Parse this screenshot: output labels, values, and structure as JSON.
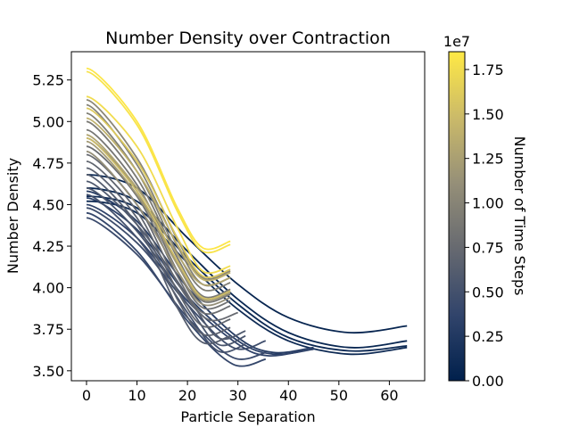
{
  "chart_data": {
    "type": "line",
    "title": "Number Density over Contraction",
    "xlabel": "Particle Separation",
    "ylabel": "Number Density",
    "xlim": [
      -3,
      67
    ],
    "ylim": [
      3.44,
      5.42
    ],
    "xticks": [
      0,
      10,
      20,
      30,
      40,
      50,
      60
    ],
    "yticks": [
      3.5,
      3.75,
      4.0,
      4.25,
      4.5,
      4.75,
      5.0,
      5.25
    ],
    "xtick_labels": [
      "0",
      "10",
      "20",
      "30",
      "40",
      "50",
      "60"
    ],
    "ytick_labels": [
      "3.50",
      "3.75",
      "4.00",
      "4.25",
      "4.50",
      "4.75",
      "5.00",
      "5.25"
    ],
    "grid": false,
    "colormap": "cividis",
    "colormap_stops": [
      "#00204c",
      "#31446b",
      "#666970",
      "#958f78",
      "#cbba69",
      "#ffe945"
    ],
    "colorbar": {
      "label": "Number of Time Steps",
      "range": [
        0,
        18500000
      ],
      "ticks": [
        0,
        2500000,
        5000000,
        7500000,
        10000000,
        12500000,
        15000000,
        17500000
      ],
      "tick_labels": [
        "0.00",
        "0.25",
        "0.50",
        "0.75",
        "1.00",
        "1.25",
        "1.50",
        "1.75"
      ],
      "offset_text": "1e7"
    },
    "series": [
      {
        "time_step": 500000,
        "x_end": 63.5,
        "y_start": 4.68,
        "y_min": 3.73,
        "x_min": 52,
        "y_end": 3.77,
        "values": [
          [
            0,
            4.68
          ],
          [
            10,
            4.6
          ],
          [
            20,
            4.3
          ],
          [
            30,
            4.02
          ],
          [
            40,
            3.82
          ],
          [
            52,
            3.73
          ],
          [
            63.5,
            3.77
          ]
        ]
      },
      {
        "time_step": 700000,
        "x_end": 63.5,
        "y_start": 4.6,
        "y_min": 3.64,
        "x_min": 52,
        "y_end": 3.68,
        "values": [
          [
            0,
            4.6
          ],
          [
            10,
            4.52
          ],
          [
            20,
            4.22
          ],
          [
            30,
            3.93
          ],
          [
            40,
            3.73
          ],
          [
            52,
            3.64
          ],
          [
            63.5,
            3.68
          ]
        ]
      },
      {
        "time_step": 900000,
        "x_end": 63.5,
        "y_start": 4.55,
        "y_min": 3.62,
        "x_min": 52,
        "y_end": 3.65,
        "values": [
          [
            0,
            4.55
          ],
          [
            10,
            4.48
          ],
          [
            20,
            4.18
          ],
          [
            30,
            3.9
          ],
          [
            40,
            3.7
          ],
          [
            52,
            3.62
          ],
          [
            63.5,
            3.65
          ]
        ]
      },
      {
        "time_step": 1100000,
        "x_end": 63.5,
        "y_start": 4.52,
        "y_min": 3.6,
        "x_min": 52,
        "y_end": 3.64,
        "values": [
          [
            0,
            4.52
          ],
          [
            10,
            4.45
          ],
          [
            20,
            4.15
          ],
          [
            30,
            3.87
          ],
          [
            40,
            3.68
          ],
          [
            52,
            3.6
          ],
          [
            63.5,
            3.64
          ]
        ]
      },
      {
        "time_step": 2800000,
        "x_end": 45,
        "y_start": 4.58,
        "y_min": 3.61,
        "x_min": 37,
        "y_end": 3.64,
        "values": [
          [
            0,
            4.58
          ],
          [
            10,
            4.4
          ],
          [
            20,
            4.0
          ],
          [
            30,
            3.7
          ],
          [
            37,
            3.61
          ],
          [
            45,
            3.64
          ]
        ]
      },
      {
        "time_step": 3200000,
        "x_end": 45,
        "y_start": 4.54,
        "y_min": 3.6,
        "x_min": 37,
        "y_end": 3.63,
        "values": [
          [
            0,
            4.54
          ],
          [
            10,
            4.35
          ],
          [
            20,
            3.95
          ],
          [
            30,
            3.68
          ],
          [
            37,
            3.6
          ],
          [
            45,
            3.63
          ]
        ]
      },
      {
        "time_step": 3600000,
        "x_end": 43,
        "y_start": 4.5,
        "y_min": 3.59,
        "x_min": 36,
        "y_end": 3.62,
        "values": [
          [
            0,
            4.5
          ],
          [
            10,
            4.3
          ],
          [
            20,
            3.92
          ],
          [
            30,
            3.66
          ],
          [
            36,
            3.59
          ],
          [
            43,
            3.62
          ]
        ]
      },
      {
        "time_step": 4000000,
        "x_end": 35.5,
        "y_start": 4.45,
        "y_min": 3.54,
        "x_min": 29,
        "y_end": 3.57,
        "values": [
          [
            0,
            4.45
          ],
          [
            10,
            4.22
          ],
          [
            20,
            3.8
          ],
          [
            29,
            3.54
          ],
          [
            35.5,
            3.57
          ]
        ]
      },
      {
        "time_step": 4300000,
        "x_end": 35.5,
        "y_start": 4.42,
        "y_min": 3.58,
        "x_min": 29,
        "y_end": 3.61,
        "values": [
          [
            0,
            4.42
          ],
          [
            10,
            4.2
          ],
          [
            20,
            3.82
          ],
          [
            29,
            3.58
          ],
          [
            35.5,
            3.61
          ]
        ]
      },
      {
        "time_step": 4600000,
        "x_end": 35.5,
        "y_start": 4.48,
        "y_min": 3.64,
        "x_min": 29,
        "y_end": 3.68,
        "values": [
          [
            0,
            4.48
          ],
          [
            10,
            4.27
          ],
          [
            20,
            3.9
          ],
          [
            29,
            3.64
          ],
          [
            35.5,
            3.68
          ]
        ]
      },
      {
        "time_step": 5000000,
        "x_end": 31.5,
        "y_start": 4.56,
        "y_min": 3.62,
        "x_min": 26,
        "y_end": 3.66,
        "values": [
          [
            0,
            4.56
          ],
          [
            10,
            4.3
          ],
          [
            20,
            3.85
          ],
          [
            26,
            3.62
          ],
          [
            31.5,
            3.66
          ]
        ]
      },
      {
        "time_step": 5400000,
        "x_end": 31.5,
        "y_start": 4.6,
        "y_min": 3.66,
        "x_min": 26,
        "y_end": 3.71,
        "values": [
          [
            0,
            4.6
          ],
          [
            10,
            4.34
          ],
          [
            20,
            3.9
          ],
          [
            26,
            3.66
          ],
          [
            31.5,
            3.71
          ]
        ]
      },
      {
        "time_step": 5800000,
        "x_end": 31.5,
        "y_start": 4.64,
        "y_min": 3.7,
        "x_min": 26,
        "y_end": 3.74,
        "values": [
          [
            0,
            4.64
          ],
          [
            10,
            4.38
          ],
          [
            20,
            3.95
          ],
          [
            26,
            3.7
          ],
          [
            31.5,
            3.74
          ]
        ]
      },
      {
        "time_step": 6200000,
        "x_end": 28.5,
        "y_start": 4.68,
        "y_min": 3.67,
        "x_min": 23,
        "y_end": 3.71,
        "values": [
          [
            0,
            4.68
          ],
          [
            10,
            4.38
          ],
          [
            18,
            3.88
          ],
          [
            23,
            3.67
          ],
          [
            28.5,
            3.71
          ]
        ]
      },
      {
        "time_step": 6600000,
        "x_end": 28.5,
        "y_start": 4.72,
        "y_min": 3.72,
        "x_min": 23,
        "y_end": 3.76,
        "values": [
          [
            0,
            4.72
          ],
          [
            10,
            4.42
          ],
          [
            18,
            3.93
          ],
          [
            23,
            3.72
          ],
          [
            28.5,
            3.76
          ]
        ]
      },
      {
        "time_step": 7000000,
        "x_end": 28.5,
        "y_start": 4.76,
        "y_min": 3.77,
        "x_min": 23,
        "y_end": 3.81,
        "values": [
          [
            0,
            4.76
          ],
          [
            10,
            4.46
          ],
          [
            18,
            3.98
          ],
          [
            23,
            3.77
          ],
          [
            28.5,
            3.81
          ]
        ]
      },
      {
        "time_step": 7400000,
        "x_end": 30,
        "y_start": 4.8,
        "y_min": 3.81,
        "x_min": 24,
        "y_end": 3.85,
        "values": [
          [
            0,
            4.8
          ],
          [
            10,
            4.5
          ],
          [
            18,
            4.03
          ],
          [
            24,
            3.81
          ],
          [
            30,
            3.85
          ]
        ]
      },
      {
        "time_step": 7800000,
        "x_end": 28.5,
        "y_start": 4.85,
        "y_min": 3.85,
        "x_min": 23,
        "y_end": 3.89,
        "values": [
          [
            0,
            4.85
          ],
          [
            10,
            4.55
          ],
          [
            18,
            4.07
          ],
          [
            23,
            3.85
          ],
          [
            28.5,
            3.89
          ]
        ]
      },
      {
        "time_step": 8200000,
        "x_end": 28.5,
        "y_start": 4.9,
        "y_min": 3.88,
        "x_min": 23,
        "y_end": 3.92,
        "values": [
          [
            0,
            4.9
          ],
          [
            10,
            4.58
          ],
          [
            18,
            4.1
          ],
          [
            23,
            3.88
          ],
          [
            28.5,
            3.92
          ]
        ]
      },
      {
        "time_step": 8600000,
        "x_end": 28.5,
        "y_start": 4.95,
        "y_min": 3.92,
        "x_min": 23,
        "y_end": 3.96,
        "values": [
          [
            0,
            4.95
          ],
          [
            10,
            4.62
          ],
          [
            18,
            4.14
          ],
          [
            23,
            3.92
          ],
          [
            28.5,
            3.96
          ]
        ]
      },
      {
        "time_step": 9000000,
        "x_end": 28.5,
        "y_start": 5.0,
        "y_min": 3.95,
        "x_min": 23,
        "y_end": 3.99,
        "values": [
          [
            0,
            5.0
          ],
          [
            10,
            4.66
          ],
          [
            18,
            4.18
          ],
          [
            23,
            3.95
          ],
          [
            28.5,
            3.99
          ]
        ]
      },
      {
        "time_step": 9400000,
        "x_end": 28.5,
        "y_start": 5.05,
        "y_min": 3.99,
        "x_min": 23,
        "y_end": 4.03,
        "values": [
          [
            0,
            5.05
          ],
          [
            10,
            4.7
          ],
          [
            18,
            4.21
          ],
          [
            23,
            3.99
          ],
          [
            28.5,
            4.03
          ]
        ]
      },
      {
        "time_step": 9800000,
        "x_end": 28.5,
        "y_start": 5.1,
        "y_min": 4.02,
        "x_min": 23,
        "y_end": 4.06,
        "values": [
          [
            0,
            5.1
          ],
          [
            10,
            4.74
          ],
          [
            18,
            4.25
          ],
          [
            23,
            4.02
          ],
          [
            28.5,
            4.06
          ]
        ]
      },
      {
        "time_step": 10200000,
        "x_end": 28.5,
        "y_start": 5.13,
        "y_min": 4.06,
        "x_min": 23,
        "y_end": 4.1,
        "values": [
          [
            0,
            5.13
          ],
          [
            10,
            4.78
          ],
          [
            18,
            4.29
          ],
          [
            23,
            4.06
          ],
          [
            28.5,
            4.1
          ]
        ]
      },
      {
        "time_step": 11000000,
        "x_end": 28.5,
        "y_start": 4.82,
        "y_min": 3.9,
        "x_min": 23,
        "y_end": 3.94,
        "values": [
          [
            0,
            4.82
          ],
          [
            10,
            4.5
          ],
          [
            18,
            4.1
          ],
          [
            23,
            3.9
          ],
          [
            28.5,
            3.94
          ]
        ]
      },
      {
        "time_step": 12000000,
        "x_end": 28.5,
        "y_start": 4.88,
        "y_min": 3.93,
        "x_min": 23,
        "y_end": 3.97,
        "values": [
          [
            0,
            4.88
          ],
          [
            10,
            4.56
          ],
          [
            18,
            4.14
          ],
          [
            23,
            3.93
          ],
          [
            28.5,
            3.97
          ]
        ]
      },
      {
        "time_step": 13000000,
        "x_end": 28.5,
        "y_start": 4.92,
        "y_min": 4.02,
        "x_min": 23,
        "y_end": 4.06,
        "values": [
          [
            0,
            4.92
          ],
          [
            10,
            4.6
          ],
          [
            18,
            4.2
          ],
          [
            23,
            4.02
          ],
          [
            28.5,
            4.06
          ]
        ]
      },
      {
        "time_step": 14000000,
        "x_end": 28.5,
        "y_start": 5.02,
        "y_min": 4.05,
        "x_min": 23,
        "y_end": 4.09,
        "values": [
          [
            0,
            5.02
          ],
          [
            10,
            4.7
          ],
          [
            18,
            4.26
          ],
          [
            23,
            4.05
          ],
          [
            28.5,
            4.09
          ]
        ]
      },
      {
        "time_step": 15000000,
        "x_end": 28.5,
        "y_start": 4.9,
        "y_min": 3.94,
        "x_min": 23,
        "y_end": 3.98,
        "values": [
          [
            0,
            4.9
          ],
          [
            10,
            4.58
          ],
          [
            18,
            4.16
          ],
          [
            23,
            3.94
          ],
          [
            28.5,
            3.98
          ]
        ]
      },
      {
        "time_step": 16000000,
        "x_end": 28.5,
        "y_start": 5.08,
        "y_min": 4.07,
        "x_min": 23,
        "y_end": 4.11,
        "values": [
          [
            0,
            5.08
          ],
          [
            10,
            4.76
          ],
          [
            18,
            4.3
          ],
          [
            23,
            4.07
          ],
          [
            28.5,
            4.11
          ]
        ]
      },
      {
        "time_step": 17500000,
        "x_end": 28.5,
        "y_start": 5.15,
        "y_min": 4.1,
        "x_min": 23,
        "y_end": 4.13,
        "values": [
          [
            0,
            5.15
          ],
          [
            10,
            4.85
          ],
          [
            18,
            4.36
          ],
          [
            23,
            4.1
          ],
          [
            28.5,
            4.13
          ]
        ]
      },
      {
        "time_step": 18000000,
        "x_end": 28.5,
        "y_start": 5.3,
        "y_min": 4.22,
        "x_min": 23,
        "y_end": 4.26,
        "values": [
          [
            0,
            5.3
          ],
          [
            10,
            4.98
          ],
          [
            18,
            4.46
          ],
          [
            23,
            4.22
          ],
          [
            28.5,
            4.26
          ]
        ]
      },
      {
        "time_step": 18300000,
        "x_end": 28.5,
        "y_start": 5.32,
        "y_min": 4.24,
        "x_min": 23,
        "y_end": 4.28,
        "values": [
          [
            0,
            5.32
          ],
          [
            10,
            5.0
          ],
          [
            18,
            4.48
          ],
          [
            23,
            4.24
          ],
          [
            28.5,
            4.28
          ]
        ]
      }
    ]
  }
}
